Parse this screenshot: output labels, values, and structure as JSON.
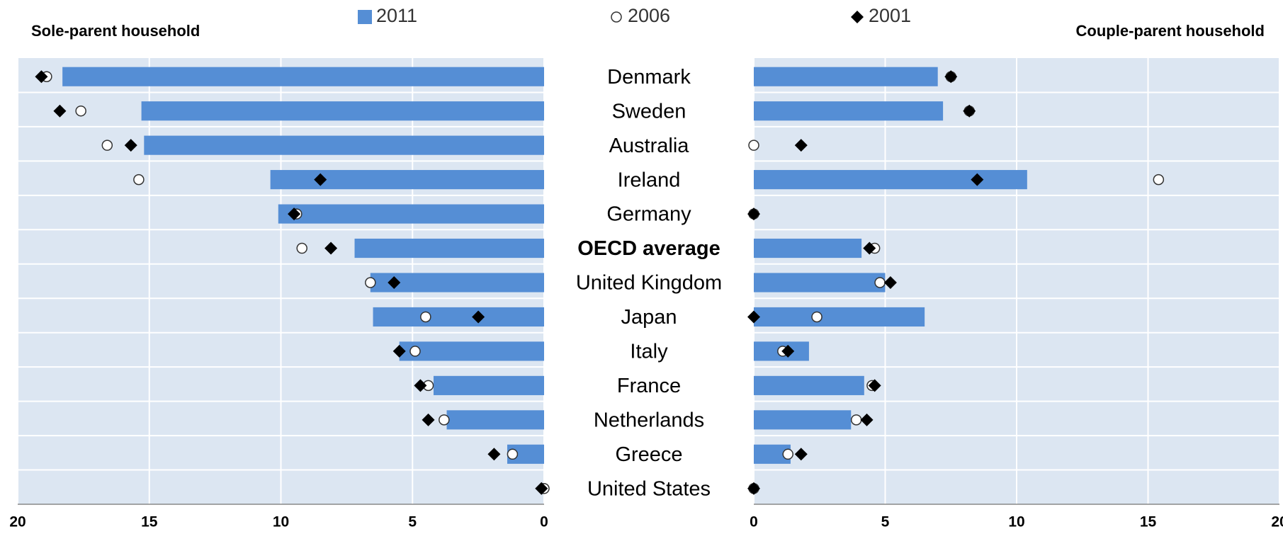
{
  "chart_data": {
    "type": "bar",
    "categories": [
      "Denmark",
      "Sweden",
      "Australia",
      "Ireland",
      "Germany",
      "OECD average",
      "United Kingdom",
      "Japan",
      "Italy",
      "France",
      "Netherlands",
      "Greece",
      "United States"
    ],
    "emphasis": [
      5
    ],
    "series": [
      {
        "name": "2011",
        "color": "#558ed5",
        "marker": "bar"
      },
      {
        "name": "2006",
        "color": "#ffffff",
        "marker": "circle"
      },
      {
        "name": "2001",
        "color": "#000000",
        "marker": "diamond"
      }
    ],
    "panels": [
      {
        "title": "Sole-parent household",
        "xlim": [
          0,
          20
        ],
        "xticks": [
          0,
          5,
          10,
          15,
          20
        ],
        "reversed": true,
        "values": [
          [
            18.3,
            15.3,
            15.2,
            10.4,
            10.1,
            7.2,
            6.6,
            6.5,
            5.5,
            4.2,
            3.7,
            1.4,
            0
          ],
          [
            18.9,
            17.6,
            16.6,
            15.4,
            9.4,
            9.2,
            6.6,
            4.5,
            4.9,
            4.4,
            3.8,
            1.2,
            0
          ],
          [
            19.1,
            18.4,
            15.7,
            8.5,
            9.5,
            8.1,
            5.7,
            2.5,
            5.5,
            4.7,
            4.4,
            1.9,
            0.1
          ]
        ]
      },
      {
        "title": "Couple-parent household",
        "xlim": [
          0,
          20
        ],
        "xticks": [
          0,
          5,
          10,
          15,
          20
        ],
        "reversed": false,
        "values": [
          [
            7.0,
            7.2,
            0,
            10.4,
            0,
            4.1,
            5.0,
            6.5,
            2.1,
            4.2,
            3.7,
            1.4,
            0
          ],
          [
            7.5,
            8.2,
            0,
            15.4,
            0,
            4.6,
            4.8,
            2.4,
            1.1,
            4.5,
            3.9,
            1.3,
            0
          ],
          [
            7.5,
            8.2,
            1.8,
            8.5,
            0,
            4.4,
            5.2,
            0,
            1.3,
            4.6,
            4.3,
            1.8,
            0
          ]
        ]
      }
    ]
  }
}
